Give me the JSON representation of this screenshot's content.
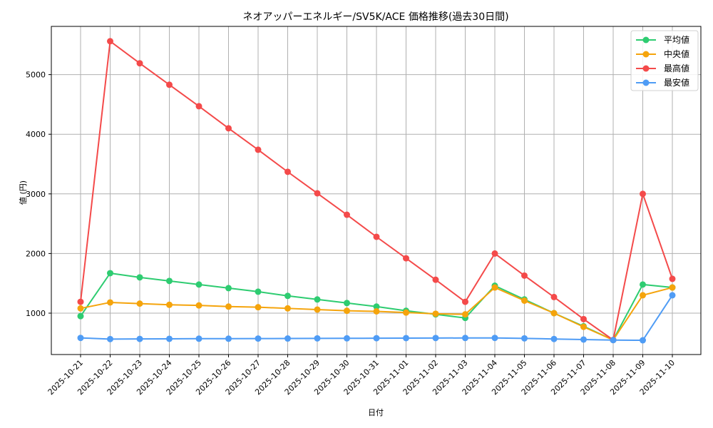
{
  "chart_data": {
    "type": "line",
    "title": "ネオアッパーエネルギー/SV5K/ACE 価格推移(過去30日間)",
    "xlabel": "日付",
    "ylabel": "値 (円)",
    "ylim": [
      310,
      5800
    ],
    "yticks": [
      1000,
      2000,
      3000,
      4000,
      5000
    ],
    "grid": true,
    "legend_position": "upper right",
    "categories": [
      "2025-10-21",
      "2025-10-22",
      "2025-10-23",
      "2025-10-24",
      "2025-10-25",
      "2025-10-26",
      "2025-10-27",
      "2025-10-28",
      "2025-10-29",
      "2025-10-30",
      "2025-10-31",
      "2025-11-01",
      "2025-11-02",
      "2025-11-03",
      "2025-11-04",
      "2025-11-05",
      "2025-11-06",
      "2025-11-07",
      "2025-11-08",
      "2025-11-09",
      "2025-11-10"
    ],
    "series": [
      {
        "name": "平均値",
        "color": "#2ecc71",
        "values": [
          950,
          1670,
          1600,
          1540,
          1480,
          1420,
          1360,
          1290,
          1230,
          1170,
          1110,
          1040,
          980,
          920,
          1460,
          1230,
          1000,
          780,
          550,
          1480,
          1430
        ]
      },
      {
        "name": "中央値",
        "color": "#f5a40c",
        "values": [
          1080,
          1180,
          1160,
          1140,
          1130,
          1110,
          1100,
          1080,
          1060,
          1040,
          1030,
          1010,
          990,
          980,
          1430,
          1210,
          1000,
          770,
          550,
          1300,
          1430
        ]
      },
      {
        "name": "最高値",
        "color": "#f44a4a",
        "values": [
          1190,
          5560,
          5190,
          4830,
          4470,
          4100,
          3740,
          3370,
          3010,
          2650,
          2280,
          1920,
          1560,
          1190,
          2000,
          1630,
          1270,
          900,
          550,
          3000,
          1575
        ]
      },
      {
        "name": "最安値",
        "color": "#4f9cf5",
        "values": [
          585,
          565,
          568,
          570,
          572,
          572,
          574,
          575,
          577,
          578,
          580,
          582,
          583,
          584,
          585,
          577,
          567,
          558,
          548,
          545,
          1300
        ]
      }
    ]
  }
}
